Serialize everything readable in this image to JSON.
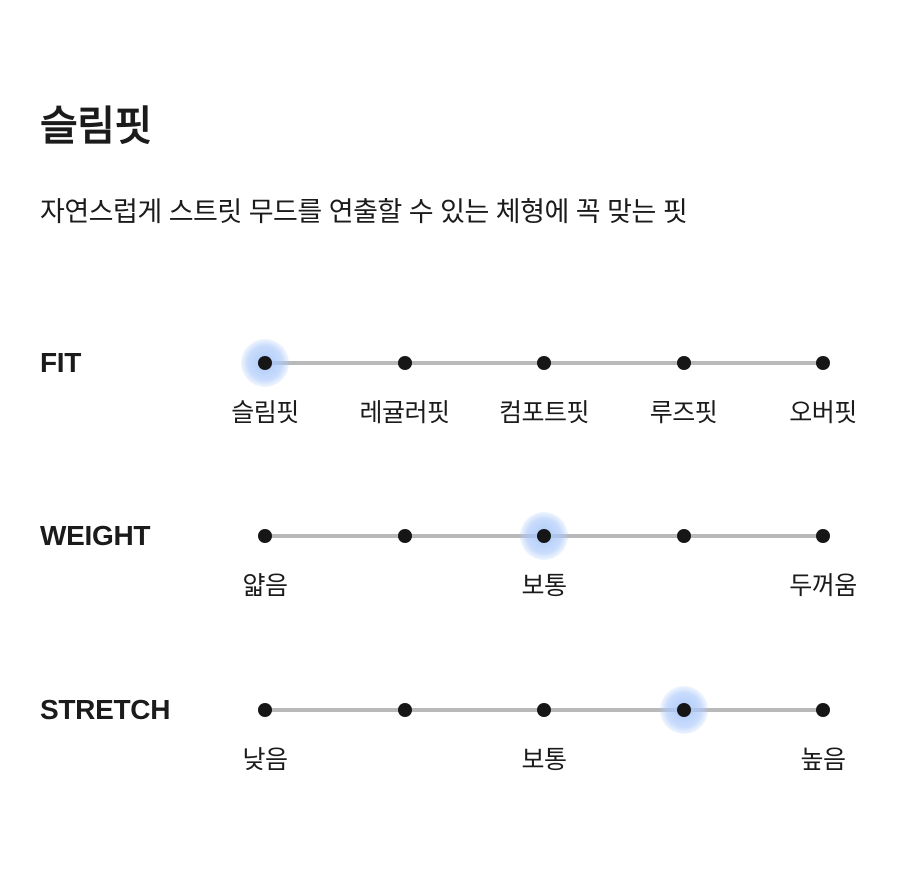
{
  "page": {
    "title": "슬림핏",
    "subtitle": "자연스럽게 스트릿 무드를 연출할 수 있는 체형에 꼭 맞는 핏"
  },
  "colors": {
    "text": "#1b1b1b",
    "track_line": "#b9b9b9",
    "dot": "#161616",
    "selected_halo": "#aac8fa"
  },
  "scales": [
    {
      "label": "FIT",
      "dot_count": 5,
      "selected_index": 0,
      "selected_value": "슬림핏",
      "tick_labels": [
        {
          "text": "슬림핏",
          "dot_index": 0
        },
        {
          "text": "레귤러핏",
          "dot_index": 1
        },
        {
          "text": "컴포트핏",
          "dot_index": 2
        },
        {
          "text": "루즈핏",
          "dot_index": 3
        },
        {
          "text": "오버핏",
          "dot_index": 4
        }
      ]
    },
    {
      "label": "WEIGHT",
      "dot_count": 5,
      "selected_index": 2,
      "selected_value": "보통",
      "tick_labels": [
        {
          "text": "얇음",
          "dot_index": 0
        },
        {
          "text": "보통",
          "dot_index": 2
        },
        {
          "text": "두꺼움",
          "dot_index": 4
        }
      ]
    },
    {
      "label": "STRETCH",
      "dot_count": 5,
      "selected_index": 3,
      "selected_value": "보통~높음",
      "tick_labels": [
        {
          "text": "낮음",
          "dot_index": 0
        },
        {
          "text": "보통",
          "dot_index": 2
        },
        {
          "text": "높음",
          "dot_index": 4
        }
      ]
    }
  ]
}
